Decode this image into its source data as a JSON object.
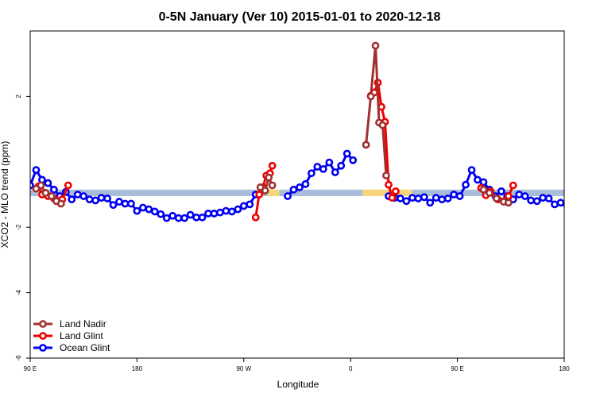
{
  "chart_data": {
    "type": "line",
    "title": "0-5N January (Ver 10)   2015-01-01 to 2020-12-18",
    "xlabel": "Longitude",
    "ylabel": "XCO2 - MLO trend (ppm)",
    "xlim": [
      -90,
      360
    ],
    "ylim": [
      -6,
      4
    ],
    "x_ticks": [
      {
        "value": -90,
        "label": "90 E"
      },
      {
        "value": 0,
        "label": "180"
      },
      {
        "value": 90,
        "label": "90 W"
      },
      {
        "value": 180,
        "label": "0"
      },
      {
        "value": 270,
        "label": "90 E"
      },
      {
        "value": 360,
        "label": "180"
      }
    ],
    "y_ticks": [
      {
        "value": -6,
        "label": "-6"
      },
      {
        "value": -4,
        "label": "-4"
      },
      {
        "value": -2,
        "label": "-2"
      },
      {
        "value": 2,
        "label": "2"
      }
    ],
    "band": {
      "y": -0.95,
      "half_width": 0.1,
      "segments": [
        {
          "x0": -90,
          "x1": 100,
          "color": "#a9bcd9"
        },
        {
          "x0": 100,
          "x1": 103,
          "color": "#f5d67e"
        },
        {
          "x0": 103,
          "x1": 110,
          "color": "#a9bcd9"
        },
        {
          "x0": 110,
          "x1": 120,
          "color": "#f5d67e"
        },
        {
          "x0": 120,
          "x1": 190,
          "color": "#a9bcd9"
        },
        {
          "x0": 190,
          "x1": 232,
          "color": "#f5d67e"
        },
        {
          "x0": 232,
          "x1": 360,
          "color": "#a9bcd9"
        }
      ]
    },
    "legend_position": "bottom-left",
    "series": [
      {
        "name": "Ocean Glint",
        "color": "#0000ee",
        "segments": [
          {
            "x": [
              -90,
              -85,
              -80,
              -75,
              -70,
              -65,
              -60,
              -55,
              -50,
              -45,
              -40,
              -35,
              -30,
              -25,
              -20,
              -15,
              -10,
              -5,
              0,
              5,
              10,
              15,
              20,
              25,
              30,
              35,
              40,
              45,
              50,
              55,
              60,
              65,
              70,
              75,
              80,
              85,
              90,
              95,
              100
            ],
            "y": [
              -0.72,
              -0.25,
              -0.55,
              -0.65,
              -0.85,
              -1.05,
              -0.92,
              -1.15,
              -1.0,
              -1.05,
              -1.15,
              -1.18,
              -1.1,
              -1.12,
              -1.32,
              -1.22,
              -1.28,
              -1.28,
              -1.5,
              -1.4,
              -1.45,
              -1.52,
              -1.6,
              -1.72,
              -1.65,
              -1.72,
              -1.72,
              -1.62,
              -1.7,
              -1.7,
              -1.58,
              -1.58,
              -1.55,
              -1.5,
              -1.52,
              -1.45,
              -1.35,
              -1.3,
              -1.0
            ]
          },
          {
            "x": [
              127,
              132,
              137,
              142,
              147,
              152,
              157,
              162,
              167,
              172,
              177,
              182
            ],
            "y": [
              -1.05,
              -0.85,
              -0.78,
              -0.68,
              -0.35,
              -0.15,
              -0.22,
              -0.02,
              -0.32,
              -0.12,
              0.25,
              0.05
            ]
          },
          {
            "x": [
              212,
              217,
              222,
              227,
              232,
              237,
              242,
              247,
              252,
              257,
              262,
              267,
              272,
              277,
              282,
              287,
              292,
              297,
              302,
              307,
              312,
              317,
              322,
              327,
              332,
              337,
              342,
              347,
              352,
              357,
              362
            ],
            "y": [
              -1.05,
              -1.1,
              -1.12,
              -1.2,
              -1.1,
              -1.12,
              -1.08,
              -1.25,
              -1.1,
              -1.15,
              -1.12,
              -1.0,
              -1.05,
              -0.7,
              -0.25,
              -0.55,
              -0.62,
              -0.85,
              -1.05,
              -0.9,
              -1.05,
              -1.15,
              -1.0,
              -1.05,
              -1.18,
              -1.2,
              -1.1,
              -1.12,
              -1.3,
              -1.25,
              -1.3
            ]
          }
        ]
      },
      {
        "name": "Land Glint",
        "color": "#ee0000",
        "segments": [
          {
            "x": [
              -83,
              -80,
              -75,
              -70,
              -67,
              -63,
              -58
            ],
            "y": [
              -0.75,
              -1.0,
              -1.05,
              -1.12,
              -1.2,
              -1.15,
              -0.72
            ]
          },
          {
            "x": [
              100,
              103,
              106,
              109,
              112,
              114
            ],
            "y": [
              -1.7,
              -1.0,
              -0.78,
              -0.42,
              -0.35,
              -0.12
            ]
          },
          {
            "x": [
              197,
              200,
              203,
              206,
              209,
              212,
              215,
              218
            ],
            "y": [
              2.02,
              2.12,
              2.42,
              1.68,
              1.22,
              -0.7,
              -1.1,
              -0.9
            ]
          },
          {
            "x": [
              290,
              294,
              298,
              304,
              309,
              313,
              317
            ],
            "y": [
              -0.8,
              -1.02,
              -0.9,
              -1.15,
              -1.2,
              -1.05,
              -0.72
            ]
          }
        ]
      },
      {
        "name": "Land Nadir",
        "color": "#a03030",
        "segments": [
          {
            "x": [
              -85,
              -81,
              -77,
              -72,
              -68,
              -64
            ],
            "y": [
              -0.82,
              -0.72,
              -0.95,
              -1.05,
              -1.2,
              -1.28
            ]
          },
          {
            "x": [
              104,
              108,
              111,
              114
            ],
            "y": [
              -0.78,
              -0.88,
              -0.48,
              -0.72
            ]
          },
          {
            "x": [
              193,
              197,
              201,
              204,
              207,
              210
            ],
            "y": [
              0.52,
              2.0,
              3.55,
              1.2,
              1.12,
              -0.42
            ]
          },
          {
            "x": [
              292,
              297,
              303,
              309,
              313
            ],
            "y": [
              -0.85,
              -0.95,
              -1.12,
              -1.22,
              -1.25
            ]
          }
        ]
      }
    ],
    "legend": [
      {
        "name": "Land Nadir",
        "color": "#a03030"
      },
      {
        "name": "Land Glint",
        "color": "#ee0000"
      },
      {
        "name": "Ocean Glint",
        "color": "#0000ee"
      }
    ]
  }
}
